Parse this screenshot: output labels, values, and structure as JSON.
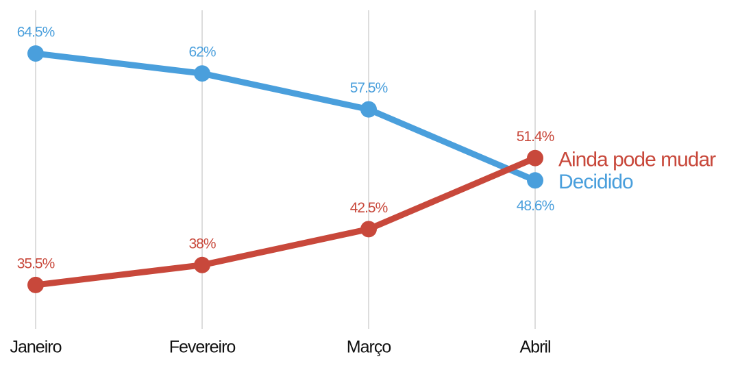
{
  "chart_data": {
    "type": "line",
    "categories": [
      "Janeiro",
      "Fevereiro",
      "Março",
      "Abril"
    ],
    "series": [
      {
        "name": "Decidido",
        "color": "#4a9fdc",
        "values": [
          64.5,
          62,
          57.5,
          48.6
        ],
        "value_labels": [
          "64.5%",
          "62%",
          "57.5%",
          "48.6%"
        ]
      },
      {
        "name": "Ainda pode mudar",
        "color": "#c8483b",
        "values": [
          35.5,
          38,
          42.5,
          51.4
        ],
        "value_labels": [
          "35.5%",
          "38%",
          "42.5%",
          "51.4%"
        ]
      }
    ],
    "ylim": [
      30,
      70
    ],
    "grid": true
  }
}
